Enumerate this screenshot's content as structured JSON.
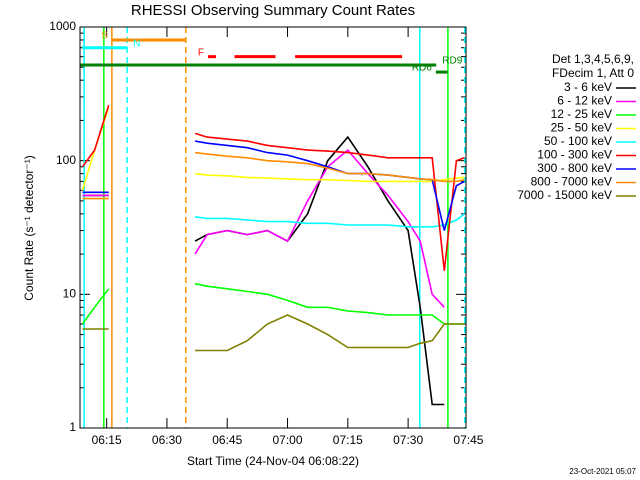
{
  "chart_data": {
    "type": "line",
    "title": "RHESSI Observing Summary Count Rates",
    "xlabel": "Start Time (24-Nov-04 06:08:22)",
    "ylabel": "Count Rate (s⁻¹ detector⁻¹)",
    "footer": "23-Oct-2021 05:07",
    "legend_header": [
      "Det 1,3,4,5,6,9,",
      "FDecim 1, Att 0"
    ],
    "log_y": true,
    "xlim": [
      368.37,
      464.4
    ],
    "ylim": [
      1,
      1000
    ],
    "xticks": [
      {
        "value": 375,
        "label": "06:15"
      },
      {
        "value": 390,
        "label": "06:30"
      },
      {
        "value": 405,
        "label": "06:45"
      },
      {
        "value": 420,
        "label": "07:00"
      },
      {
        "value": 435,
        "label": "07:15"
      },
      {
        "value": 450,
        "label": "07:30"
      },
      {
        "value": 465,
        "label": "07:45"
      }
    ],
    "yticks": [
      1,
      10,
      100,
      1000
    ],
    "yminorticks": [
      2,
      3,
      4,
      5,
      6,
      7,
      8,
      9,
      20,
      30,
      40,
      50,
      60,
      70,
      80,
      90,
      200,
      300,
      400,
      500,
      600,
      700,
      800,
      900
    ],
    "x": [
      369,
      372,
      375.5,
      380,
      397,
      400,
      405,
      410,
      415,
      420,
      425,
      430,
      435,
      440,
      445,
      450,
      453,
      456,
      459,
      462,
      464
    ],
    "series": [
      {
        "name": "3 - 6 keV",
        "color": "#000000",
        "values": [
          55,
          55,
          55,
          null,
          25,
          28,
          30,
          28,
          30,
          25,
          40,
          100,
          150,
          90,
          50,
          30,
          8,
          1.5,
          1.5,
          null,
          null
        ]
      },
      {
        "name": "6 - 12 keV",
        "color": "#ff00ff",
        "values": [
          55,
          55,
          55,
          null,
          20,
          28,
          30,
          28,
          30,
          25,
          50,
          90,
          120,
          80,
          55,
          35,
          25,
          10,
          8,
          null,
          null
        ]
      },
      {
        "name": "12 - 25 keV",
        "color": "#00ff00",
        "values": [
          6,
          8,
          11,
          null,
          12,
          11.5,
          11,
          10.5,
          10,
          9,
          8,
          8,
          7.5,
          7.3,
          7,
          7,
          7,
          7,
          6,
          6,
          6
        ]
      },
      {
        "name": "25 - 50 keV",
        "color": "#ffff00",
        "values": [
          60,
          120,
          250,
          null,
          80,
          78,
          77,
          75,
          74,
          73,
          72,
          72,
          71,
          70,
          70,
          70,
          70,
          70,
          72,
          74,
          75
        ]
      },
      {
        "name": "50 - 100 keV",
        "color": "#00ffff",
        "values": [
          58,
          58,
          58,
          null,
          38,
          37,
          37,
          36,
          35,
          35,
          34,
          34,
          33,
          33,
          33,
          32,
          32,
          32,
          33,
          36,
          40
        ]
      },
      {
        "name": "100 - 300 keV",
        "color": "#ff0000",
        "values": [
          90,
          120,
          260,
          null,
          160,
          150,
          145,
          140,
          130,
          125,
          120,
          118,
          115,
          110,
          105,
          105,
          105,
          105,
          15,
          100,
          105
        ]
      },
      {
        "name": "300 - 800 keV",
        "color": "#0000ff",
        "values": [
          58,
          58,
          58,
          null,
          140,
          135,
          130,
          125,
          115,
          110,
          100,
          90,
          80,
          80,
          78,
          75,
          73,
          72,
          30,
          65,
          70
        ]
      },
      {
        "name": "800 - 7000 keV",
        "color": "#ff8c00",
        "values": [
          52,
          52,
          52,
          null,
          115,
          112,
          108,
          105,
          100,
          98,
          95,
          88,
          80,
          80,
          78,
          75,
          73,
          72,
          70,
          70,
          72
        ]
      },
      {
        "name": "7000 - 15000 keV",
        "color": "#808000",
        "values": [
          5.5,
          5.5,
          5.5,
          null,
          3.8,
          3.8,
          3.8,
          4.5,
          6,
          7,
          6,
          5,
          4,
          4,
          4,
          4,
          4.3,
          4.5,
          6,
          6,
          6
        ]
      }
    ],
    "vlines": [
      {
        "x": 369.4,
        "color": "#00ffff",
        "dashed": false
      },
      {
        "x": 374.3,
        "color": "#00ff00",
        "dashed": false
      },
      {
        "x": 376.3,
        "color": "#ff8c00",
        "dashed": false
      },
      {
        "x": 380.1,
        "color": "#00ffff",
        "dashed": true
      },
      {
        "x": 394.7,
        "color": "#ff8c00",
        "dashed": true
      },
      {
        "x": 452.9,
        "color": "#00ffff",
        "dashed": false
      },
      {
        "x": 459.9,
        "color": "#00ff00",
        "dashed": false
      },
      {
        "x": 464.1,
        "color": "#00ffff",
        "dashed": true
      }
    ],
    "bars": [
      {
        "label": "S",
        "color": "#ff8c00",
        "y": 800,
        "segments": [
          [
            376.3,
            394.7
          ]
        ],
        "label_side": "left"
      },
      {
        "label": "N",
        "color": "#00ffff",
        "y": 700,
        "segments": [
          [
            368.9,
            380.1
          ]
        ],
        "label_side": "right"
      },
      {
        "label": "F",
        "color": "#ff0000",
        "y": 600,
        "segments": [
          [
            400.2,
            402.2
          ],
          [
            406.8,
            417.0
          ],
          [
            421.9,
            448.5
          ]
        ],
        "label_side": "left"
      },
      {
        "label": "RD9",
        "color": "#008000",
        "y": 520,
        "segments": [
          [
            368.37,
            457.0
          ]
        ],
        "label_side": "right"
      },
      {
        "label": "RD6",
        "color": "#008000",
        "y": 460,
        "segments": [
          [
            456.9,
            459.9
          ]
        ],
        "label_side": "left"
      }
    ]
  }
}
